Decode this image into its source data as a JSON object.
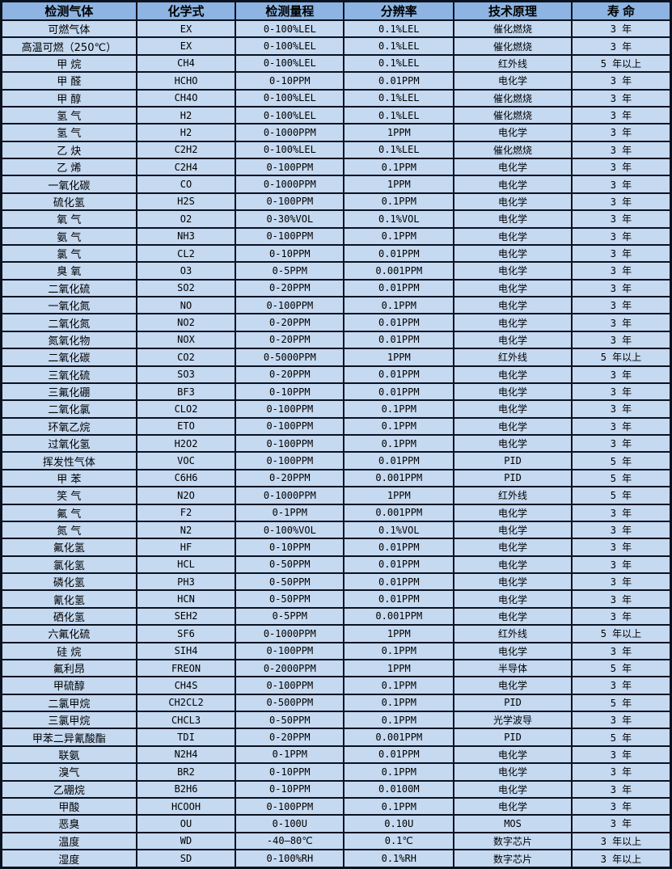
{
  "colors": {
    "header_bg": "#8DB4E2",
    "row_bg": "#C5D9F1",
    "border": "#0b1220",
    "text": "#000000"
  },
  "chart_data": {
    "type": "table",
    "title": "",
    "columns": [
      "检测气体",
      "化学式",
      "检测量程",
      "分辨率",
      "技术原理",
      "寿 命"
    ],
    "rows": [
      [
        "可燃气体",
        "EX",
        "0-100%LEL",
        "0.1%LEL",
        "催化燃烧",
        "3 年"
      ],
      [
        "高温可燃（250℃）",
        "EX",
        "0-100%LEL",
        "0.1%LEL",
        "催化燃烧",
        "3 年"
      ],
      [
        "甲 烷",
        "CH4",
        "0-100%LEL",
        "0.1%LEL",
        "红外线",
        "5 年以上"
      ],
      [
        "甲 醛",
        "HCHO",
        "0-10PPM",
        "0.01PPM",
        "电化学",
        "3 年"
      ],
      [
        "甲 醇",
        "CH4O",
        "0-100%LEL",
        "0.1%LEL",
        "催化燃烧",
        "3 年"
      ],
      [
        "氢 气",
        "H2",
        "0-100%LEL",
        "0.1%LEL",
        "催化燃烧",
        "3 年"
      ],
      [
        "氢 气",
        "H2",
        "0-1000PPM",
        "1PPM",
        "电化学",
        "3 年"
      ],
      [
        "乙 炔",
        "C2H2",
        "0-100%LEL",
        "0.1%LEL",
        "催化燃烧",
        "3 年"
      ],
      [
        "乙 烯",
        "C2H4",
        "0-100PPM",
        "0.1PPM",
        "电化学",
        "3 年"
      ],
      [
        "一氧化碳",
        "CO",
        "0-1000PPM",
        "1PPM",
        "电化学",
        "3 年"
      ],
      [
        "硫化氢",
        "H2S",
        "0-100PPM",
        "0.1PPM",
        "电化学",
        "3 年"
      ],
      [
        "氧 气",
        "O2",
        "0-30%VOL",
        "0.1%VOL",
        "电化学",
        "3 年"
      ],
      [
        "氨 气",
        "NH3",
        "0-100PPM",
        "0.1PPM",
        "电化学",
        "3 年"
      ],
      [
        "氯 气",
        "CL2",
        "0-10PPM",
        "0.01PPM",
        "电化学",
        "3 年"
      ],
      [
        "臭 氧",
        "O3",
        "0-5PPM",
        "0.001PPM",
        "电化学",
        "3 年"
      ],
      [
        "二氧化硫",
        "SO2",
        "0-20PPM",
        "0.01PPM",
        "电化学",
        "3 年"
      ],
      [
        "一氧化氮",
        "NO",
        "0-100PPM",
        "0.1PPM",
        "电化学",
        "3 年"
      ],
      [
        "二氧化氮",
        "NO2",
        "0-20PPM",
        "0.01PPM",
        "电化学",
        "3 年"
      ],
      [
        "氮氧化物",
        "NOX",
        "0-20PPM",
        "0.01PPM",
        "电化学",
        "3 年"
      ],
      [
        "二氧化碳",
        "CO2",
        "0-5000PPM",
        "1PPM",
        "红外线",
        "5 年以上"
      ],
      [
        "三氧化硫",
        "SO3",
        "0-20PPM",
        "0.01PPM",
        "电化学",
        "3 年"
      ],
      [
        "三氟化硼",
        "BF3",
        "0-10PPM",
        "0.01PPM",
        "电化学",
        "3 年"
      ],
      [
        "二氧化氯",
        "CLO2",
        "0-100PPM",
        "0.1PPM",
        "电化学",
        "3 年"
      ],
      [
        "环氧乙烷",
        "ETO",
        "0-100PPM",
        "0.1PPM",
        "电化学",
        "3 年"
      ],
      [
        "过氧化氢",
        "H2O2",
        "0-100PPM",
        "0.1PPM",
        "电化学",
        "3 年"
      ],
      [
        "挥发性气体",
        "VOC",
        "0-100PPM",
        "0.01PPM",
        "PID",
        "5 年"
      ],
      [
        "甲 苯",
        "C6H6",
        "0-20PPM",
        "0.001PPM",
        "PID",
        "5 年"
      ],
      [
        "笑 气",
        "N2O",
        "0-1000PPM",
        "1PPM",
        "红外线",
        "5 年"
      ],
      [
        "氟 气",
        "F2",
        "0-1PPM",
        "0.001PPM",
        "电化学",
        "3 年"
      ],
      [
        "氮 气",
        "N2",
        "0-100%VOL",
        "0.1%VOL",
        "电化学",
        "3 年"
      ],
      [
        "氟化氢",
        "HF",
        "0-10PPM",
        "0.01PPM",
        "电化学",
        "3 年"
      ],
      [
        "氯化氢",
        "HCL",
        "0-50PPM",
        "0.01PPM",
        "电化学",
        "3 年"
      ],
      [
        "磷化氢",
        "PH3",
        "0-50PPM",
        "0.01PPM",
        "电化学",
        "3 年"
      ],
      [
        "氰化氢",
        "HCN",
        "0-50PPM",
        "0.01PPM",
        "电化学",
        "3 年"
      ],
      [
        "硒化氢",
        "SEH2",
        "0-5PPM",
        "0.001PPM",
        "电化学",
        "3 年"
      ],
      [
        "六氟化硫",
        "SF6",
        "0-1000PPM",
        "1PPM",
        "红外线",
        "5 年以上"
      ],
      [
        "硅 烷",
        "SIH4",
        "0-100PPM",
        "0.1PPM",
        "电化学",
        "3 年"
      ],
      [
        "氟利昂",
        "FREON",
        "0-2000PPM",
        "1PPM",
        "半导体",
        "5 年"
      ],
      [
        "甲硫醇",
        "CH4S",
        "0-100PPM",
        "0.1PPM",
        "电化学",
        "3 年"
      ],
      [
        "二氯甲烷",
        "CH2CL2",
        "0-500PPM",
        "0.1PPM",
        "PID",
        "5 年"
      ],
      [
        "三氯甲烷",
        "CHCL3",
        "0-50PPM",
        "0.1PPM",
        "光学波导",
        "3 年"
      ],
      [
        "甲苯二异氰酸酯",
        "TDI",
        "0-20PPM",
        "0.001PPM",
        "PID",
        "5 年"
      ],
      [
        "联氨",
        "N2H4",
        "0-1PPM",
        "0.01PPM",
        "电化学",
        "3 年"
      ],
      [
        "溴气",
        "BR2",
        "0-10PPM",
        "0.1PPM",
        "电化学",
        "3 年"
      ],
      [
        "乙硼烷",
        "B2H6",
        "0-10PPM",
        "0.0100M",
        "电化学",
        "3 年"
      ],
      [
        "甲酸",
        "HCOOH",
        "0-100PPM",
        "0.1PPM",
        "电化学",
        "3 年"
      ],
      [
        "恶臭",
        "OU",
        "0-100U",
        "0.10U",
        "MOS",
        "3 年"
      ],
      [
        "温度",
        "WD",
        "-40—80℃",
        "0.1℃",
        "数字芯片",
        "3 年以上"
      ],
      [
        "湿度",
        "SD",
        "0-100%RH",
        "0.1%RH",
        "数字芯片",
        "3 年以上"
      ]
    ]
  }
}
